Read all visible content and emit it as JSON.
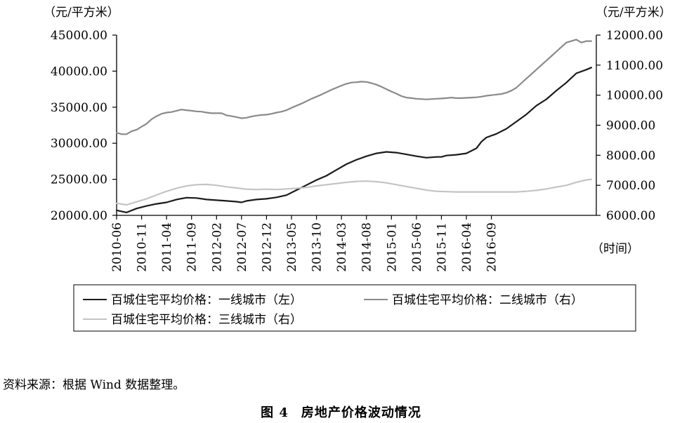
{
  "source_note": "资料来源：根据 Wind 数据整理。",
  "figure_caption": {
    "number": "图 4",
    "title": "房地产价格波动情况"
  },
  "chart_data": {
    "type": "line",
    "left_axis": {
      "unit": "（元/平方米）",
      "ylim": [
        20000,
        45000
      ],
      "ticks": [
        "20000.00",
        "25000.00",
        "30000.00",
        "35000.00",
        "40000.00",
        "45000.00"
      ]
    },
    "right_axis": {
      "unit": "（元/平方米）",
      "ylim": [
        6000,
        12000
      ],
      "ticks": [
        "6000.00",
        "7000.00",
        "8000.00",
        "9000.00",
        "10000.00",
        "11000.00",
        "12000.00"
      ]
    },
    "xlabel": "（时间）",
    "x_tick_labels": [
      "2010-06",
      "2010-11",
      "2011-04",
      "2011-09",
      "2012-02",
      "2012-07",
      "2012-12",
      "2013-05",
      "2013-10",
      "2014-03",
      "2014-08",
      "2015-01",
      "2015-06",
      "2015-11",
      "2016-04",
      "2016-09"
    ],
    "legend": {
      "placement": "bottom",
      "columns": 2
    },
    "colors": {
      "tier1": "#1a1a1a",
      "tier2": "#8a8a8a",
      "tier3": "#c4c4c4"
    },
    "series": [
      {
        "name": "百城住宅平均价格：一线城市（左）",
        "axis": "left",
        "color": "#1a1a1a",
        "points": [
          [
            0,
            20700
          ],
          [
            2,
            20400
          ],
          [
            4,
            20950
          ],
          [
            6,
            21300
          ],
          [
            8,
            21600
          ],
          [
            10,
            21800
          ],
          [
            12,
            22200
          ],
          [
            14,
            22450
          ],
          [
            16,
            22400
          ],
          [
            18,
            22200
          ],
          [
            20,
            22100
          ],
          [
            22,
            22000
          ],
          [
            24,
            21900
          ],
          [
            25,
            21800
          ],
          [
            26,
            22000
          ],
          [
            28,
            22200
          ],
          [
            30,
            22300
          ],
          [
            32,
            22500
          ],
          [
            34,
            22800
          ],
          [
            36,
            23500
          ],
          [
            38,
            24200
          ],
          [
            40,
            24900
          ],
          [
            42,
            25500
          ],
          [
            44,
            26300
          ],
          [
            46,
            27100
          ],
          [
            48,
            27700
          ],
          [
            50,
            28200
          ],
          [
            52,
            28600
          ],
          [
            54,
            28800
          ],
          [
            56,
            28700
          ],
          [
            58,
            28450
          ],
          [
            60,
            28200
          ],
          [
            62,
            28000
          ],
          [
            64,
            28100
          ],
          [
            65,
            28100
          ],
          [
            66,
            28300
          ],
          [
            68,
            28400
          ],
          [
            70,
            28600
          ],
          [
            72,
            29300
          ],
          [
            73,
            30200
          ],
          [
            74,
            30800
          ],
          [
            76,
            31300
          ],
          [
            78,
            32000
          ],
          [
            80,
            33000
          ],
          [
            82,
            34000
          ],
          [
            84,
            35200
          ],
          [
            86,
            36100
          ],
          [
            88,
            37300
          ],
          [
            90,
            38400
          ],
          [
            92,
            39700
          ],
          [
            94,
            40200
          ],
          [
            95,
            40500
          ]
        ]
      },
      {
        "name": "百城住宅平均价格：二线城市（右）",
        "axis": "right",
        "color": "#8a8a8a",
        "points": [
          [
            0,
            8750
          ],
          [
            1,
            8700
          ],
          [
            2,
            8700
          ],
          [
            3,
            8800
          ],
          [
            4,
            8850
          ],
          [
            5,
            8950
          ],
          [
            6,
            9050
          ],
          [
            7,
            9200
          ],
          [
            8,
            9300
          ],
          [
            9,
            9380
          ],
          [
            10,
            9420
          ],
          [
            11,
            9440
          ],
          [
            12,
            9480
          ],
          [
            13,
            9520
          ],
          [
            14,
            9500
          ],
          [
            15,
            9480
          ],
          [
            16,
            9460
          ],
          [
            17,
            9450
          ],
          [
            18,
            9420
          ],
          [
            19,
            9400
          ],
          [
            20,
            9400
          ],
          [
            21,
            9400
          ],
          [
            22,
            9330
          ],
          [
            23,
            9300
          ],
          [
            24,
            9270
          ],
          [
            25,
            9230
          ],
          [
            26,
            9250
          ],
          [
            27,
            9290
          ],
          [
            28,
            9320
          ],
          [
            29,
            9340
          ],
          [
            30,
            9350
          ],
          [
            31,
            9380
          ],
          [
            32,
            9420
          ],
          [
            33,
            9450
          ],
          [
            34,
            9500
          ],
          [
            35,
            9580
          ],
          [
            36,
            9650
          ],
          [
            37,
            9720
          ],
          [
            38,
            9800
          ],
          [
            39,
            9880
          ],
          [
            40,
            9950
          ],
          [
            41,
            10020
          ],
          [
            42,
            10100
          ],
          [
            43,
            10180
          ],
          [
            44,
            10250
          ],
          [
            45,
            10320
          ],
          [
            46,
            10380
          ],
          [
            47,
            10420
          ],
          [
            48,
            10430
          ],
          [
            49,
            10450
          ],
          [
            50,
            10440
          ],
          [
            51,
            10400
          ],
          [
            52,
            10350
          ],
          [
            53,
            10280
          ],
          [
            54,
            10200
          ],
          [
            55,
            10120
          ],
          [
            56,
            10050
          ],
          [
            57,
            9970
          ],
          [
            58,
            9920
          ],
          [
            59,
            9900
          ],
          [
            60,
            9880
          ],
          [
            61,
            9870
          ],
          [
            62,
            9860
          ],
          [
            63,
            9870
          ],
          [
            64,
            9880
          ],
          [
            65,
            9890
          ],
          [
            66,
            9900
          ],
          [
            67,
            9920
          ],
          [
            68,
            9900
          ],
          [
            69,
            9900
          ],
          [
            70,
            9910
          ],
          [
            71,
            9920
          ],
          [
            72,
            9930
          ],
          [
            73,
            9950
          ],
          [
            74,
            9980
          ],
          [
            75,
            10000
          ],
          [
            76,
            10020
          ],
          [
            77,
            10040
          ],
          [
            78,
            10080
          ],
          [
            79,
            10150
          ],
          [
            80,
            10250
          ],
          [
            81,
            10400
          ],
          [
            82,
            10550
          ],
          [
            83,
            10700
          ],
          [
            84,
            10850
          ],
          [
            85,
            11000
          ],
          [
            86,
            11150
          ],
          [
            87,
            11300
          ],
          [
            88,
            11450
          ],
          [
            89,
            11600
          ],
          [
            90,
            11750
          ],
          [
            91,
            11800
          ],
          [
            92,
            11850
          ],
          [
            93,
            11750
          ],
          [
            94,
            11800
          ],
          [
            95,
            11800
          ]
        ]
      },
      {
        "name": "百城住宅平均价格：三线城市（右）",
        "axis": "right",
        "color": "#c4c4c4",
        "points": [
          [
            0,
            6400
          ],
          [
            2,
            6350
          ],
          [
            4,
            6450
          ],
          [
            6,
            6550
          ],
          [
            8,
            6680
          ],
          [
            10,
            6800
          ],
          [
            12,
            6900
          ],
          [
            14,
            6980
          ],
          [
            16,
            7020
          ],
          [
            18,
            7030
          ],
          [
            20,
            7000
          ],
          [
            22,
            6950
          ],
          [
            24,
            6910
          ],
          [
            26,
            6870
          ],
          [
            28,
            6860
          ],
          [
            30,
            6870
          ],
          [
            32,
            6860
          ],
          [
            34,
            6880
          ],
          [
            36,
            6900
          ],
          [
            38,
            6930
          ],
          [
            40,
            6980
          ],
          [
            42,
            7020
          ],
          [
            44,
            7060
          ],
          [
            46,
            7100
          ],
          [
            48,
            7130
          ],
          [
            50,
            7140
          ],
          [
            52,
            7120
          ],
          [
            54,
            7080
          ],
          [
            56,
            7020
          ],
          [
            58,
            6960
          ],
          [
            60,
            6900
          ],
          [
            62,
            6840
          ],
          [
            64,
            6800
          ],
          [
            66,
            6790
          ],
          [
            68,
            6780
          ],
          [
            70,
            6780
          ],
          [
            72,
            6780
          ],
          [
            74,
            6780
          ],
          [
            76,
            6780
          ],
          [
            78,
            6780
          ],
          [
            80,
            6780
          ],
          [
            82,
            6800
          ],
          [
            84,
            6830
          ],
          [
            86,
            6880
          ],
          [
            88,
            6940
          ],
          [
            90,
            7000
          ],
          [
            92,
            7100
          ],
          [
            94,
            7180
          ],
          [
            95,
            7200
          ]
        ]
      }
    ]
  }
}
